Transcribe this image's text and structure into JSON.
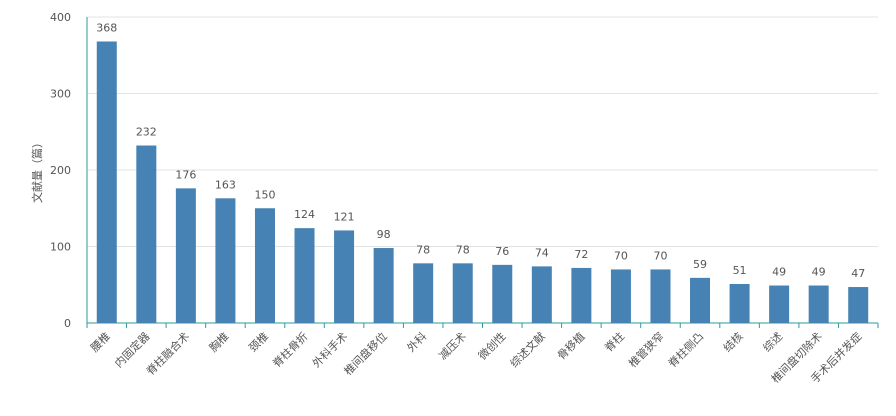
{
  "chart_data": {
    "type": "bar",
    "y_label": "文献量（篇）",
    "categories": [
      "腰椎",
      "内固定器",
      "脊柱融合术",
      "胸椎",
      "颈椎",
      "脊柱骨折",
      "外科手术",
      "椎间盘移位",
      "外科",
      "减压术",
      "微创性",
      "综述文献",
      "骨移植",
      "脊柱",
      "椎管狭窄",
      "脊柱侧凸",
      "结核",
      "综述",
      "椎间盘切除术",
      "手术后并发症"
    ],
    "values": [
      368,
      232,
      176,
      163,
      150,
      124,
      121,
      98,
      78,
      78,
      76,
      74,
      72,
      70,
      70,
      59,
      51,
      49,
      49,
      47
    ],
    "color": "#4682b4",
    "ylim": [
      0,
      400
    ],
    "yticks": [
      0,
      100,
      200,
      300,
      400
    ],
    "grid": true
  }
}
